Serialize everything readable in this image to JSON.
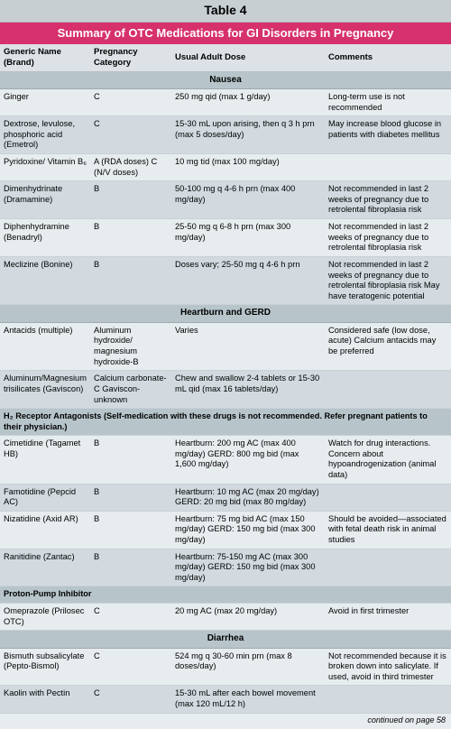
{
  "title": "Table 4",
  "subtitle": "Summary of OTC Medications for GI Disorders in Pregnancy",
  "columns": [
    "Generic Name (Brand)",
    "Pregnancy Category",
    "Usual Adult Dose",
    "Comments"
  ],
  "sections": [
    {
      "label": "Nausea",
      "rows": [
        {
          "cls": "row-a",
          "c": [
            "Ginger",
            "C",
            "250 mg qid (max 1 g/day)",
            "Long-term use is not recommended"
          ]
        },
        {
          "cls": "row-b",
          "c": [
            "Dextrose, levulose, phosphoric acid (Emetrol)",
            "C",
            "15-30 mL upon arising, then q 3 h prn (max 5 doses/day)",
            "May increase blood glucose in patients with diabetes mellitus"
          ]
        },
        {
          "cls": "row-a",
          "c": [
            "Pyridoxine/ Vitamin B₆",
            "A (RDA doses) C (N/V doses)",
            "10 mg tid (max 100 mg/day)",
            ""
          ]
        },
        {
          "cls": "row-b",
          "c": [
            "Dimenhydrinate (Dramamine)",
            "B",
            "50-100 mg q 4-6 h prn (max 400 mg/day)",
            "Not recommended in last 2 weeks of pregnancy due to retrolental fibroplasia risk"
          ]
        },
        {
          "cls": "row-a",
          "c": [
            "Diphenhydramine (Benadryl)",
            "B",
            "25-50 mg q 6-8 h prn (max 300 mg/day)",
            "Not recommended in last 2 weeks of pregnancy due to retrolental fibroplasia risk"
          ]
        },
        {
          "cls": "row-b",
          "c": [
            "Meclizine (Bonine)",
            "B",
            "Doses vary; 25-50 mg q 4-6 h prn",
            "Not recommended in last 2 weeks of pregnancy due to retrolental fibroplasia risk May have teratogenic potential"
          ]
        }
      ]
    },
    {
      "label": "Heartburn and GERD",
      "rows": [
        {
          "cls": "row-a",
          "c": [
            "Antacids (multiple)",
            "Aluminum hydroxide/ magnesium hydroxide-B",
            "Varies",
            "Considered safe (low dose, acute) Calcium antacids may be preferred"
          ]
        },
        {
          "cls": "row-b",
          "c": [
            "Aluminum/Magnesium trisilicates (Gaviscon)",
            "Calcium carbonate-C Gaviscon-unknown",
            "Chew and swallow 2-4 tablets or 15-30 mL qid (max 16 tablets/day)",
            ""
          ]
        }
      ]
    },
    {
      "note": "H₂ Receptor Antagonists (Self-medication with these drugs is not recommended. Refer pregnant patients to their physician.)",
      "rows": [
        {
          "cls": "row-a",
          "c": [
            "Cimetidine (Tagamet HB)",
            "B",
            "Heartburn: 200 mg AC (max 400 mg/day) GERD: 800 mg bid (max 1,600 mg/day)",
            "Watch for drug interactions. Concern about hypoandrogenization (animal data)"
          ]
        },
        {
          "cls": "row-b",
          "c": [
            "Famotidine (Pepcid AC)",
            "B",
            "Heartburn: 10 mg AC (max 20 mg/day) GERD: 20 mg bid (max 80 mg/day)",
            ""
          ]
        },
        {
          "cls": "row-a",
          "c": [
            "Nizatidine (Axid AR)",
            "B",
            "Heartburn: 75 mg bid AC (max 150 mg/day) GERD: 150 mg bid (max 300 mg/day)",
            "Should be avoided—associated with fetal death risk in animal studies"
          ]
        },
        {
          "cls": "row-b",
          "c": [
            "Ranitidine (Zantac)",
            "B",
            "Heartburn: 75-150 mg AC (max 300 mg/day) GERD: 150 mg bid (max 300 mg/day)",
            ""
          ]
        }
      ]
    },
    {
      "note": "Proton-Pump Inhibitor",
      "rows": [
        {
          "cls": "row-a",
          "c": [
            "Omeprazole (Prilosec OTC)",
            "C",
            "20 mg AC (max 20 mg/day)",
            "Avoid in first trimester"
          ]
        }
      ]
    },
    {
      "label": "Diarrhea",
      "rows": [
        {
          "cls": "row-a",
          "c": [
            "Bismuth subsalicylate (Pepto-Bismol)",
            "C",
            "524 mg q 30-60 min prn (max 8 doses/day)",
            "Not recommended because it is broken down into salicylate. If used, avoid in third trimester"
          ]
        },
        {
          "cls": "row-b",
          "c": [
            "Kaolin with Pectin",
            "C",
            "15-30 mL after each bowel movement (max 120 mL/12 h)",
            ""
          ]
        }
      ]
    }
  ],
  "continued": "continued on page 58"
}
